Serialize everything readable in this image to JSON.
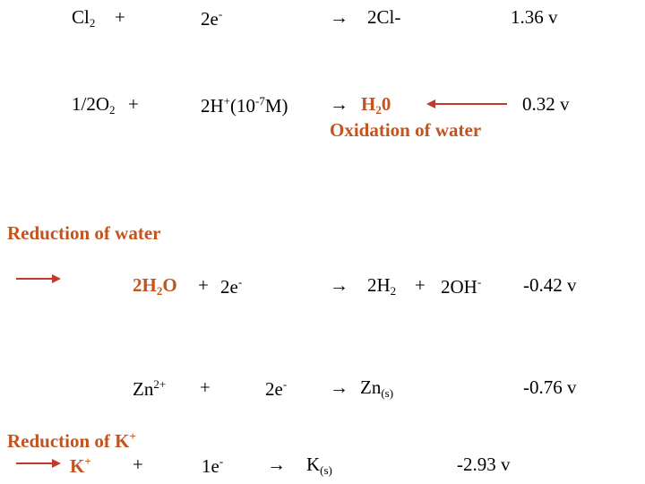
{
  "colors": {
    "accent": "#c3531f",
    "arrow": "#c0392b",
    "text": "#000000"
  },
  "row1": {
    "a_main": "Cl",
    "a_sub": "2",
    "a_op": "+",
    "b_main": "2e",
    "b_sup": "-",
    "arrow": "→",
    "product": "2Cl-",
    "potential": "1.36 v"
  },
  "row2": {
    "a_main1": "1/2O",
    "a_sub": "2",
    "a_op": "+",
    "b_main1": "2H",
    "b_sup1": "+",
    "b_main2": "(10",
    "b_sup2": "-7",
    "b_main3": "M)",
    "arrow": "→",
    "p_main": "H",
    "p_sub": "2",
    "p_tail": "0",
    "potential": "0.32 v",
    "note": "Oxidation of water"
  },
  "label_reduction_water": "Reduction of water",
  "row3": {
    "a_main1": "2H",
    "a_sub": "2",
    "a_main2": "O",
    "a_op": "+",
    "b_main": "2e",
    "b_sup": "-",
    "arrow": "→",
    "p1_main": "2H",
    "p1_sub": "2",
    "p_op": "+",
    "p2_main": "2OH",
    "p2_sup": "-",
    "potential": "-0.42 v"
  },
  "row4": {
    "a_main": "Zn",
    "a_sup": "2+",
    "a_op": "+",
    "b_main": "2e",
    "b_sup": "-",
    "arrow": "→",
    "p_main": "Zn",
    "p_sub": "(s)",
    "potential": "-0.76 v"
  },
  "label_reduction_k": {
    "main": "Reduction of K",
    "sup": "+"
  },
  "row5": {
    "a_main": "K",
    "a_sup": "+",
    "a_op": "+",
    "b_main": "1e",
    "b_sup": "-",
    "arrow": "→",
    "p_main": "K",
    "p_sub": "(s)",
    "potential": "-2.93 v"
  }
}
